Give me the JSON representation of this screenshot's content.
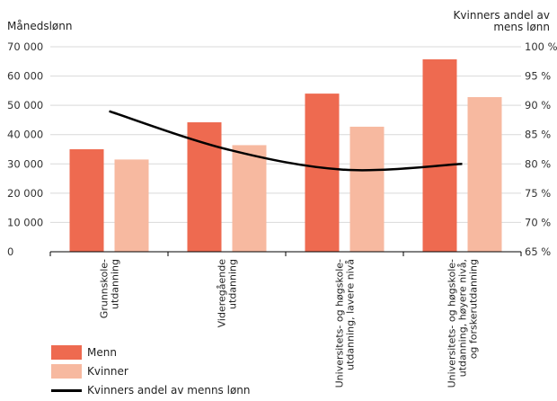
{
  "chart_data": {
    "type": "bar",
    "left_axis_title": "Månedslønn",
    "right_axis_title_lines": [
      "Kvinners andel av",
      "mens lønn"
    ],
    "categories": [
      [
        "Grunnskole-",
        "utdanning"
      ],
      [
        "Videregående",
        "utdanning"
      ],
      [
        "Universitets- og høgskole-",
        "utdanning, lavere nivå"
      ],
      [
        "Universitets- og høgskole-",
        "utdanning, høyere nivå,",
        "og forskerutdanning"
      ]
    ],
    "series": [
      {
        "name": "Menn",
        "type": "bar",
        "axis": "left",
        "color": "#ee6a50",
        "values": [
          35000,
          44200,
          54000,
          65700
        ]
      },
      {
        "name": "Kvinner",
        "type": "bar",
        "axis": "left",
        "color": "#f7b9a0",
        "values": [
          31500,
          36400,
          42700,
          52800
        ]
      },
      {
        "name": "Kvinners andel av menns lønn",
        "type": "line",
        "axis": "right",
        "color": "#000000",
        "values": [
          89,
          82.5,
          79,
          80
        ]
      }
    ],
    "left_ylim": [
      0,
      70000
    ],
    "left_ticks": [
      "0",
      "10 000",
      "20 000",
      "30 000",
      "40 000",
      "50 000",
      "60 000",
      "70 000"
    ],
    "right_ylim": [
      65,
      100
    ],
    "right_ticks": [
      "65 %",
      "70 %",
      "75 %",
      "80 %",
      "85 %",
      "90 %",
      "95 %",
      "100 %"
    ],
    "grid": "horizontal",
    "legend_position": "bottom-left"
  },
  "legend": {
    "items": [
      {
        "label": "Menn",
        "color": "#ee6a50",
        "kind": "bar"
      },
      {
        "label": "Kvinner",
        "color": "#f7b9a0",
        "kind": "bar"
      },
      {
        "label": "Kvinners andel av menns lønn",
        "color": "#000000",
        "kind": "line"
      }
    ]
  }
}
